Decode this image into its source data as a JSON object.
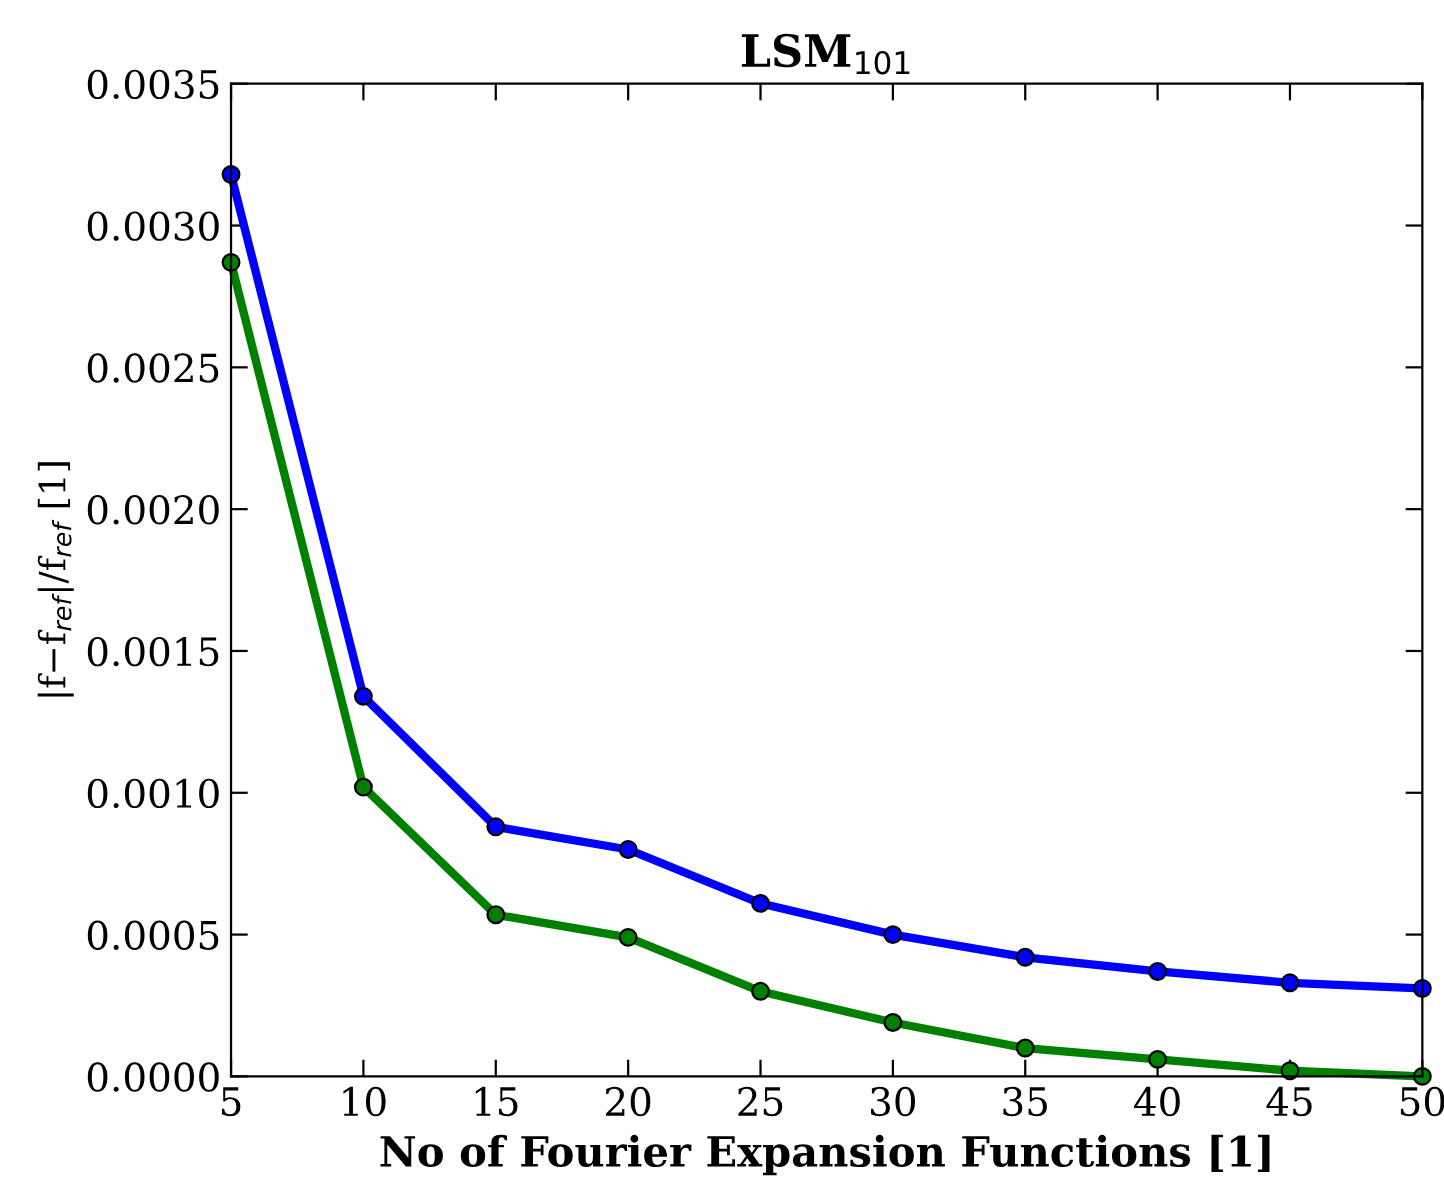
{
  "chart_data": {
    "type": "line",
    "title": "LSM$_{101}$",
    "xlabel": "No of Fourier Expansion Functions [1]",
    "ylabel": "|f−f$_{ref}$|/f$_{ref}$ [1]",
    "x": [
      5,
      10,
      15,
      20,
      25,
      30,
      35,
      40,
      45,
      50
    ],
    "series": [
      {
        "color": "#0000ff",
        "values": [
          0.00318,
          0.00134,
          0.00088,
          0.0008,
          0.00061,
          0.0005,
          0.00042,
          0.00037,
          0.00033,
          0.00031
        ]
      },
      {
        "color": "#008000",
        "values": [
          0.00287,
          0.00102,
          0.00057,
          0.00049,
          0.0003,
          0.00019,
          0.0001,
          6e-05,
          2e-05,
          0.0
        ]
      }
    ],
    "xlim": [
      5,
      50
    ],
    "xticks": [
      5,
      10,
      15,
      20,
      25,
      30,
      35,
      40,
      45,
      50
    ],
    "ylim": [
      0,
      0.0035
    ],
    "yticks": [
      {
        "value": 0,
        "label": "0.0000"
      },
      {
        "value": 0.0005,
        "label": "0.0005"
      },
      {
        "value": 0.001,
        "label": "0.0010"
      },
      {
        "value": 0.0015,
        "label": "0.0015"
      },
      {
        "value": 0.002,
        "label": "0.0020"
      },
      {
        "value": 0.0025,
        "label": "0.0025"
      },
      {
        "value": 0.003,
        "label": "0.0030"
      },
      {
        "value": 0.0035,
        "label": "0.0035"
      }
    ],
    "grid": false,
    "marker": "circle",
    "line_style": "solid"
  }
}
